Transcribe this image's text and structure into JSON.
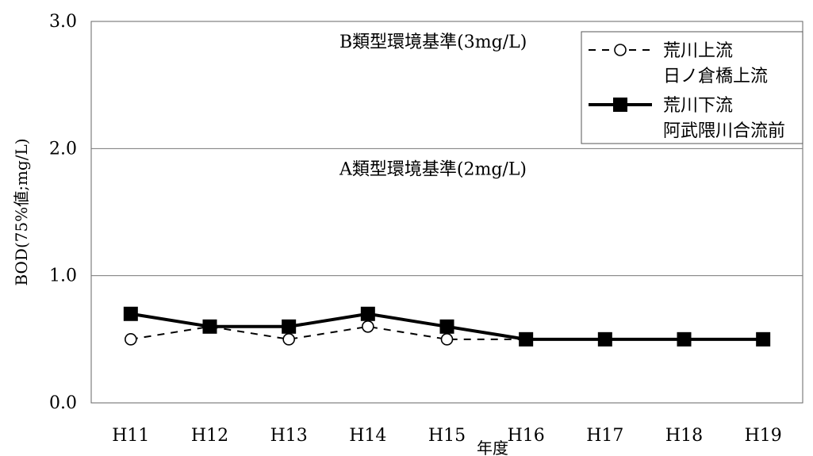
{
  "chart_data": {
    "type": "line",
    "categories": [
      "H11",
      "H12",
      "H13",
      "H14",
      "H15",
      "H16",
      "H17",
      "H18",
      "H19"
    ],
    "series": [
      {
        "name_line1": "荒川上流",
        "name_line2": "日ノ倉橋上流",
        "style": "dashed-open-circle",
        "color": "#000000",
        "values": [
          0.5,
          0.6,
          0.5,
          0.6,
          0.5,
          0.5,
          0.5,
          0.5,
          0.5
        ]
      },
      {
        "name_line1": "荒川下流",
        "name_line2": "阿武隈川合流前",
        "style": "solid-filled-square",
        "color": "#000000",
        "values": [
          0.7,
          0.6,
          0.6,
          0.7,
          0.6,
          0.5,
          0.5,
          0.5,
          0.5
        ]
      }
    ],
    "ylabel": "BOD(75%値;mg/L)",
    "xlabel": "年度",
    "ylim": [
      0,
      3
    ],
    "yticks": [
      "0.0",
      "1.0",
      "2.0",
      "3.0"
    ],
    "grid": "horizontal",
    "reference_lines": [
      {
        "value": 3,
        "label": "B類型環境基準(3mg/L)"
      },
      {
        "value": 2,
        "label": "A類型環境基準(2mg/L)"
      }
    ],
    "legend_position": "top-right"
  }
}
